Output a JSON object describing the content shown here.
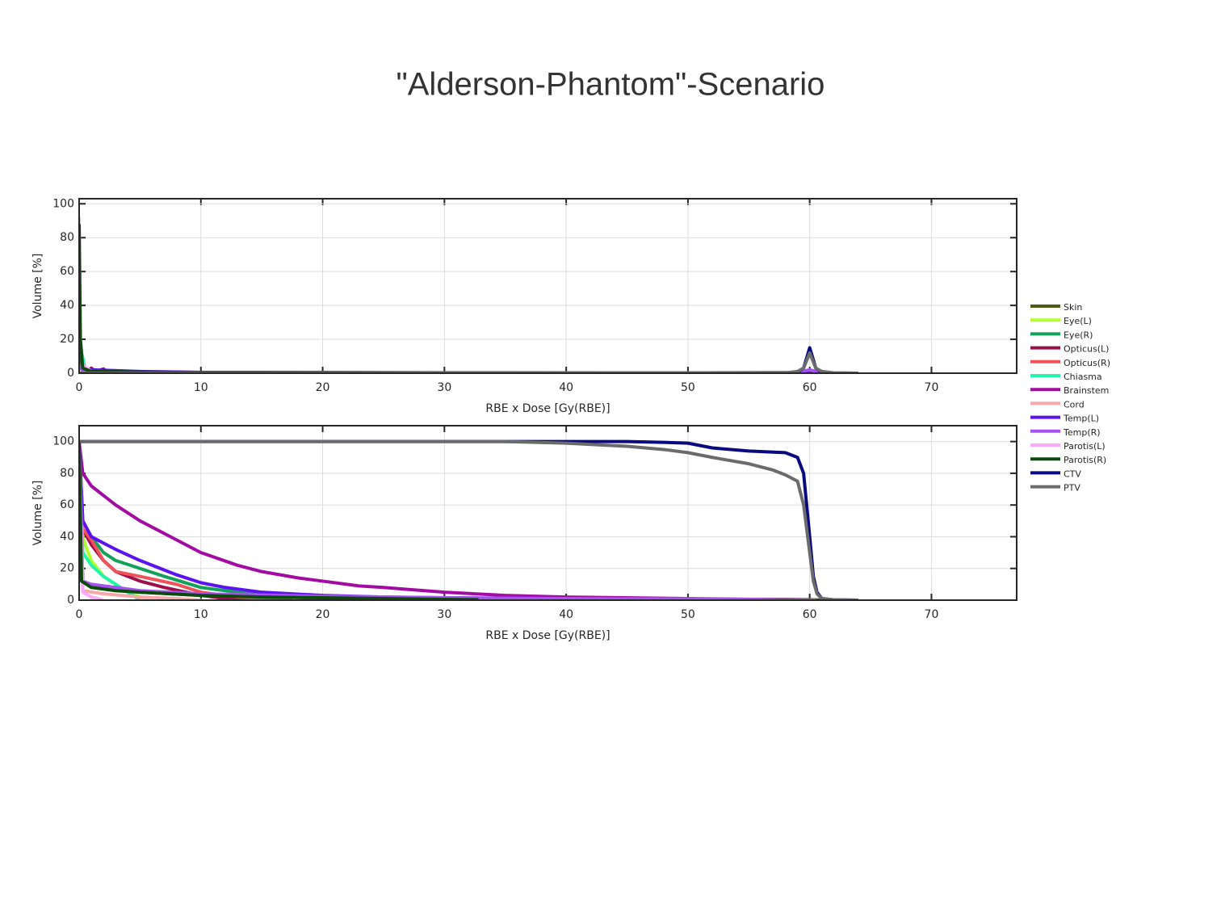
{
  "title": "\"Alderson-Phantom\"-Scenario",
  "chart_data": [
    {
      "type": "line",
      "xlabel": "RBE x Dose [Gy(RBE)]",
      "ylabel": "Volume [%]",
      "xlim": [
        0,
        77
      ],
      "ylim": [
        0,
        103
      ],
      "xticks": [
        0,
        10,
        20,
        30,
        40,
        50,
        60,
        70
      ],
      "yticks": [
        0,
        20,
        40,
        60,
        80,
        100
      ],
      "grid": true,
      "series": [
        {
          "color": "#4d5a12",
          "x": [
            0,
            0.3,
            1,
            10,
            30,
            50,
            59,
            60,
            61,
            64
          ],
          "values": [
            5,
            1,
            0.5,
            0.3,
            0.2,
            0.2,
            0.3,
            1,
            0.2,
            0
          ]
        },
        {
          "color": "#b2ff2e",
          "x": [
            0,
            0.3,
            1,
            3,
            6
          ],
          "values": [
            10,
            2,
            1,
            0.5,
            0
          ]
        },
        {
          "color": "#12a05a",
          "x": [
            0,
            0.3,
            1,
            5,
            10,
            25
          ],
          "values": [
            20,
            3,
            1.5,
            0.8,
            0.3,
            0
          ]
        },
        {
          "color": "#9e0e4a",
          "x": [
            0,
            0.3,
            0.6,
            1,
            1.3,
            2,
            2.3,
            3,
            5,
            15
          ],
          "values": [
            15,
            3,
            1,
            3,
            1,
            2.5,
            1,
            1.5,
            0.5,
            0
          ]
        },
        {
          "color": "#f0525a",
          "x": [
            0,
            0.3,
            1,
            2,
            5,
            17
          ],
          "values": [
            15,
            2,
            1.5,
            1,
            0.5,
            0
          ]
        },
        {
          "color": "#22f5a8",
          "x": [
            0,
            0.2,
            0.5,
            1,
            3,
            5
          ],
          "values": [
            30,
            12,
            3,
            1,
            0.5,
            0
          ]
        },
        {
          "color": "#a30ca3",
          "x": [
            0,
            0.3,
            1,
            10,
            30,
            50,
            60
          ],
          "values": [
            8,
            2,
            1,
            0.5,
            0.3,
            0.2,
            0
          ]
        },
        {
          "color": "#f5a8a8",
          "x": [
            0,
            0.3,
            2,
            10
          ],
          "values": [
            5,
            2,
            0.5,
            0
          ]
        },
        {
          "color": "#5a12f0",
          "x": [
            0,
            0.3,
            1,
            5,
            10,
            30,
            60
          ],
          "values": [
            15,
            3,
            2,
            1,
            0.5,
            0.2,
            0
          ]
        },
        {
          "color": "#a552f0",
          "x": [
            0,
            0.3,
            1,
            10,
            30,
            50,
            59,
            60,
            61
          ],
          "values": [
            5,
            1,
            0.5,
            0.3,
            0.2,
            0.2,
            0.5,
            2,
            0
          ]
        },
        {
          "color": "#fca8fc",
          "x": [
            0,
            0.1,
            0.3,
            1,
            2
          ],
          "values": [
            92,
            20,
            5,
            1,
            0
          ]
        },
        {
          "color": "#0a4a0a",
          "x": [
            0,
            0.1,
            0.3,
            1,
            10,
            33
          ],
          "values": [
            88,
            20,
            3,
            1,
            0.3,
            0
          ]
        },
        {
          "color": "#0a0a80",
          "x": [
            0,
            30,
            58,
            59,
            59.5,
            60,
            60.5,
            61,
            62,
            64
          ],
          "values": [
            0,
            0,
            0,
            0.5,
            3,
            15,
            3,
            0.5,
            0,
            0
          ]
        },
        {
          "color": "#6b6b6b",
          "x": [
            0,
            30,
            58,
            59,
            59.5,
            60,
            60.5,
            61,
            62,
            64
          ],
          "values": [
            0,
            0,
            0.2,
            1,
            3,
            12,
            3,
            1,
            0.2,
            0
          ]
        }
      ]
    },
    {
      "type": "line",
      "xlabel": "RBE x Dose [Gy(RBE)]",
      "ylabel": "Volume [%]",
      "xlim": [
        0,
        77
      ],
      "ylim": [
        0,
        110
      ],
      "xticks": [
        0,
        10,
        20,
        30,
        40,
        50,
        60,
        70
      ],
      "yticks": [
        0,
        20,
        40,
        60,
        80,
        100
      ],
      "grid": true,
      "series": [
        {
          "name": "Skin",
          "color": "#4d5a12",
          "x": [
            0,
            0.3,
            1,
            3,
            5,
            10,
            15,
            20,
            30,
            40,
            50,
            58,
            60,
            61,
            64
          ],
          "values": [
            100,
            12,
            9,
            7,
            5,
            3,
            2,
            1.5,
            1,
            0.8,
            0.6,
            0.5,
            0.3,
            0.1,
            0
          ]
        },
        {
          "name": "Eye(L)",
          "color": "#b2ff2e",
          "x": [
            0,
            0.3,
            0.5,
            1,
            2,
            3,
            4,
            5,
            6
          ],
          "values": [
            100,
            40,
            35,
            25,
            15,
            10,
            5,
            2,
            0
          ]
        },
        {
          "name": "Eye(R)",
          "color": "#12a05a",
          "x": [
            0,
            0.3,
            1,
            2,
            3,
            5,
            7,
            10,
            15,
            20,
            25.5
          ],
          "values": [
            100,
            50,
            40,
            30,
            25,
            20,
            15,
            8,
            3,
            1,
            0
          ]
        },
        {
          "name": "Opticus(L)",
          "color": "#9e0e4a",
          "x": [
            0,
            0.3,
            1,
            2,
            3,
            5,
            7,
            10,
            12,
            15
          ],
          "values": [
            100,
            45,
            35,
            25,
            18,
            12,
            8,
            3,
            1,
            0
          ]
        },
        {
          "name": "Opticus(R)",
          "color": "#f0525a",
          "x": [
            0,
            0.3,
            1,
            2,
            3,
            5,
            8,
            10,
            13,
            17.5
          ],
          "values": [
            100,
            45,
            38,
            25,
            18,
            15,
            10,
            5,
            2,
            0
          ]
        },
        {
          "name": "Chiasma",
          "color": "#22f5a8",
          "x": [
            0,
            0.3,
            1,
            2,
            3,
            4,
            5
          ],
          "values": [
            100,
            30,
            22,
            15,
            10,
            5,
            0
          ]
        },
        {
          "name": "Brainstem",
          "color": "#a30ca3",
          "x": [
            0,
            0.3,
            1,
            3,
            5,
            8,
            10,
            13,
            15,
            18,
            20,
            23,
            25,
            30,
            35,
            40,
            50,
            60.5
          ],
          "values": [
            100,
            80,
            72,
            60,
            50,
            38,
            30,
            22,
            18,
            14,
            12,
            9,
            8,
            5,
            3,
            2,
            1,
            0
          ]
        },
        {
          "name": "Cord",
          "color": "#f5a8a8",
          "x": [
            0,
            0.3,
            2,
            5,
            8,
            10
          ],
          "values": [
            100,
            6,
            4,
            2,
            1,
            0
          ]
        },
        {
          "name": "Temp(L)",
          "color": "#5a12f0",
          "x": [
            0,
            0.3,
            1,
            3,
            5,
            8,
            10,
            12,
            15,
            20,
            25,
            30,
            40,
            60.5
          ],
          "values": [
            100,
            50,
            40,
            32,
            25,
            16,
            11,
            8,
            5,
            3,
            2,
            1.5,
            1,
            0
          ]
        },
        {
          "name": "Temp(R)",
          "color": "#a552f0",
          "x": [
            0,
            0.3,
            1,
            3,
            5,
            10,
            20,
            30,
            40,
            50,
            60.5
          ],
          "values": [
            100,
            12,
            10,
            8,
            6,
            4,
            2.5,
            1.5,
            1,
            0.8,
            0
          ]
        },
        {
          "name": "Parotis(L)",
          "color": "#fca8fc",
          "x": [
            0,
            0.3,
            1,
            2
          ],
          "values": [
            100,
            5,
            2,
            0
          ]
        },
        {
          "name": "Parotis(R)",
          "color": "#0a4a0a",
          "x": [
            0,
            0.2,
            1,
            3,
            5,
            10,
            15,
            20,
            25,
            30,
            32.8
          ],
          "values": [
            100,
            12,
            8,
            6,
            5,
            3,
            2,
            1.5,
            1,
            0.5,
            0.3
          ]
        },
        {
          "name": "CTV",
          "color": "#0a0a80",
          "x": [
            0,
            30,
            35,
            40,
            45,
            48,
            50,
            52,
            55,
            58,
            59,
            59.5,
            60,
            60.3,
            60.6,
            61,
            62,
            64
          ],
          "values": [
            100,
            100,
            100,
            100,
            100,
            99.5,
            99,
            96,
            94,
            93,
            90,
            80,
            40,
            15,
            5,
            1,
            0.2,
            0
          ]
        },
        {
          "name": "PTV",
          "color": "#6b6b6b",
          "x": [
            0,
            30,
            35,
            40,
            45,
            48,
            50,
            52,
            55,
            57,
            58,
            59,
            59.5,
            60,
            60.3,
            60.6,
            61,
            62,
            64
          ],
          "values": [
            100,
            100,
            100,
            99,
            97,
            95,
            93,
            90,
            86,
            82,
            79,
            75,
            60,
            30,
            12,
            4,
            1,
            0.2,
            0
          ]
        }
      ]
    }
  ]
}
